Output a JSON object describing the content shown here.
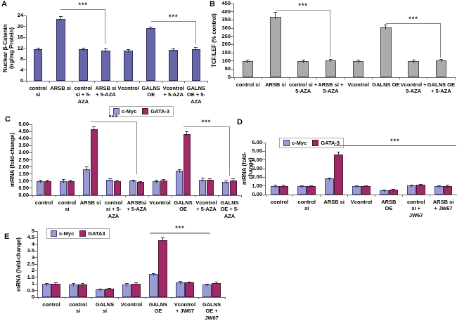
{
  "figure": {
    "background": "#ffffff",
    "axis_color": "#6b6b6b",
    "panel_letters": [
      "A",
      "B",
      "C",
      "D",
      "E"
    ]
  },
  "chart_data": [
    {
      "id": "A",
      "type": "bar",
      "panel_letter": "A",
      "ylabel": "Nuclear β-Catenin\n(ng/mg Protein)",
      "xlabel": "",
      "ylim": [
        0,
        24
      ],
      "grid": false,
      "legend_position": "none",
      "axis_color": "#6b6b6b",
      "yticks": [
        [
          0,
          "0"
        ],
        [
          4,
          "4"
        ],
        [
          8,
          "8"
        ],
        [
          12,
          "12"
        ],
        [
          16,
          "16"
        ],
        [
          20,
          "20"
        ],
        [
          24,
          "24"
        ]
      ],
      "categories": [
        "control\nsi",
        "ARSB si",
        "control\nsi + 5-\nAZA",
        "ARSB si\n+ 5-AZA",
        "Vcontrol",
        "GALNS\nOE",
        "Vcontrol\n+ 5-AZA",
        "GALNS\nOE + 5-\nAZA"
      ],
      "series": [
        {
          "name": "Nuclear beta-Catenin",
          "color": "#6767A8",
          "border": "#2F2F60",
          "values": [
            11.5,
            22.8,
            11.5,
            11.2,
            11.1,
            19.4,
            11.3,
            11.7
          ],
          "errors": [
            0.4,
            0.8,
            0.4,
            0.5,
            0.3,
            0.4,
            0.4,
            0.6
          ]
        }
      ],
      "annotations": [
        {
          "label": "***",
          "from": 1,
          "to": 3,
          "y": 26.2,
          "drop": 13.6,
          "color": "#858585"
        },
        {
          "label": "***",
          "from": 5,
          "to": 7,
          "y": 21.9,
          "drop": 13.3,
          "color": "#858585"
        }
      ]
    },
    {
      "id": "B",
      "type": "bar",
      "panel_letter": "B",
      "ylabel": "TCF/LEF (% control)",
      "xlabel": "",
      "ylim": [
        0,
        450
      ],
      "grid": false,
      "legend_position": "none",
      "axis_color": "#6b6b6b",
      "yticks": [
        [
          0,
          "0"
        ],
        [
          50,
          "50"
        ],
        [
          100,
          "100"
        ],
        [
          150,
          "150"
        ],
        [
          200,
          "200"
        ],
        [
          250,
          "250"
        ],
        [
          300,
          "300"
        ],
        [
          350,
          "350"
        ],
        [
          400,
          "400"
        ],
        [
          450,
          "450"
        ]
      ],
      "categories": [
        "control si",
        "ARSB si",
        "control si +\n5-AZA",
        "ARSB si +\n5-AZA",
        "Vcontrol",
        "GALNS OE",
        "Vcontrol +\n5-AZA",
        "GALNS OE\n+ 5-AZA"
      ],
      "series": [
        {
          "name": "TCF/LEF",
          "color": "#ABABAB",
          "border": "#4A4A4A",
          "values": [
            100,
            370,
            100,
            105,
            100,
            305,
            100,
            105
          ],
          "errors": [
            5,
            28,
            5,
            6,
            5,
            15,
            5,
            6
          ]
        }
      ],
      "annotations": [
        {
          "label": "***",
          "from": 1,
          "to": 3,
          "y": 412,
          "drop": 118,
          "color": "#858585"
        },
        {
          "label": "***",
          "from": 5,
          "to": 7,
          "y": 330,
          "drop": 120,
          "color": "#858585"
        }
      ]
    },
    {
      "id": "C",
      "type": "bar",
      "panel_letter": "C",
      "ylabel": "mRNA (fold-change)",
      "xlabel": "",
      "ylim": [
        0,
        5
      ],
      "grid": false,
      "legend_position": "top-center",
      "axis_color": "#6b6b6b",
      "yticks": [
        [
          0,
          "0.00"
        ],
        [
          0.5,
          "0.50"
        ],
        [
          1,
          "1.00"
        ],
        [
          1.5,
          "1.50"
        ],
        [
          2,
          "2.00"
        ],
        [
          2.5,
          "2.50"
        ],
        [
          3,
          "3.00"
        ],
        [
          3.5,
          "3.50"
        ],
        [
          4,
          "4.00"
        ],
        [
          4.5,
          "4.50"
        ],
        [
          5,
          "5.00"
        ]
      ],
      "categories": [
        "control",
        "control\nsi",
        "ARSB si",
        "control\nsi + 5-\nAZA",
        "ARSBsi\n+ 5-AZA",
        "Vcontrol",
        "GALNS\nOE",
        "Vcontrol\n+ 5-AZA",
        "GALNS\nOE + 5-\nAZA"
      ],
      "legend": [
        {
          "label": "c-Myc",
          "color": "#9B9BD4",
          "border": "#3F3F7A"
        },
        {
          "label": "GATA-3",
          "color": "#A02A66",
          "border": "#4F1232"
        }
      ],
      "series": [
        {
          "name": "c-Myc",
          "color": "#9B9BD4",
          "border": "#3F3F7A",
          "values": [
            1.0,
            1.0,
            1.85,
            1.1,
            1.02,
            1.0,
            1.75,
            1.1,
            0.95
          ],
          "errors": [
            0.05,
            0.1,
            0.15,
            0.05,
            0.05,
            0.06,
            0.06,
            0.1,
            0.05
          ]
        },
        {
          "name": "GATA-3",
          "color": "#A02A66",
          "border": "#4F1232",
          "values": [
            1.0,
            1.0,
            4.65,
            1.0,
            0.95,
            1.05,
            4.3,
            1.1,
            1.05
          ],
          "errors": [
            0.08,
            0.08,
            0.18,
            0.05,
            0.04,
            0.06,
            0.18,
            0.07,
            0.1
          ]
        }
      ],
      "annotations": [
        {
          "label": "***",
          "from": 2,
          "to": 4,
          "y": 5.2,
          "drop": 1.5,
          "color": "#858585"
        },
        {
          "label": "***",
          "from": 6,
          "to": 8,
          "y": 4.85,
          "drop": 1.4,
          "color": "#858585"
        }
      ]
    },
    {
      "id": "D",
      "type": "bar",
      "panel_letter": "D",
      "ylabel": "mRNA (fold-change)",
      "xlabel": "",
      "ylim": [
        0,
        6
      ],
      "grid": false,
      "legend_position": "top-left-inside",
      "axis_color": "#6b6b6b",
      "yticks": [
        [
          0,
          "0.00"
        ],
        [
          1,
          "1.00"
        ],
        [
          2,
          "2.00"
        ],
        [
          3,
          "3.00"
        ],
        [
          4,
          "4.00"
        ],
        [
          5,
          "5.00"
        ],
        [
          6,
          "6.00"
        ]
      ],
      "categories": [
        "control",
        "control\nsi",
        "ARSB si",
        "Vcontrol",
        "ARSB\nOE",
        "control\nsi +\nJW67",
        "ARSB si\n+ JW67"
      ],
      "legend": [
        {
          "label": "c-Myc",
          "color": "#9B9BD4",
          "border": "#3F3F7A"
        },
        {
          "label": "GATA-3",
          "color": "#A02A66",
          "border": "#4F1232"
        }
      ],
      "series": [
        {
          "name": "c-Myc",
          "color": "#9B9BD4",
          "border": "#3F3F7A",
          "values": [
            1.0,
            1.0,
            1.85,
            1.0,
            0.5,
            1.05,
            0.95
          ],
          "errors": [
            0.1,
            0.05,
            0.08,
            0.05,
            0.04,
            0.06,
            0.05
          ]
        },
        {
          "name": "GATA-3",
          "color": "#A02A66",
          "border": "#4F1232",
          "values": [
            1.0,
            0.95,
            4.65,
            1.0,
            0.55,
            1.1,
            1.0
          ],
          "errors": [
            0.12,
            0.05,
            0.25,
            0.05,
            0.05,
            0.05,
            0.08
          ]
        }
      ],
      "annotations": [
        {
          "label": "***",
          "from": 2,
          "to": 6,
          "y": 5.65,
          "drop": null,
          "x2_shift": 18,
          "color": "#4D4D4D"
        }
      ]
    },
    {
      "id": "E",
      "type": "bar",
      "panel_letter": "E",
      "ylabel": "mRNA (fold-change)",
      "xlabel": "",
      "ylim": [
        0,
        5
      ],
      "grid": false,
      "legend_position": "top-left",
      "axis_color": "#6b6b6b",
      "yticks": [
        [
          0,
          "0"
        ],
        [
          0.5,
          "0.5"
        ],
        [
          1,
          "1"
        ],
        [
          1.5,
          "1.5"
        ],
        [
          2,
          "2"
        ],
        [
          2.5,
          "2.5"
        ],
        [
          3,
          "3"
        ],
        [
          3.5,
          "3.5"
        ],
        [
          4,
          "4"
        ],
        [
          4.5,
          "4.5"
        ],
        [
          5,
          "5"
        ]
      ],
      "categories": [
        "control",
        "control\nsi",
        "GALNS\nsi",
        "Vcontrol",
        "GALNS\nOE",
        "Vcontrol\n+ JW67",
        "GALNS\nOE +\nJW67"
      ],
      "legend": [
        {
          "label": "c-Myc",
          "color": "#9B9BD4",
          "border": "#3F3F7A"
        },
        {
          "label": "GATA3",
          "color": "#A02A66",
          "border": "#4F1232"
        }
      ],
      "series": [
        {
          "name": "c-Myc",
          "color": "#9B9BD4",
          "border": "#3F3F7A",
          "values": [
            1.0,
            0.95,
            0.57,
            0.95,
            1.75,
            1.1,
            0.95
          ],
          "errors": [
            0.05,
            0.1,
            0.04,
            0.07,
            0.05,
            0.08,
            0.04
          ]
        },
        {
          "name": "GATA3",
          "color": "#A02A66",
          "border": "#4F1232",
          "values": [
            1.0,
            0.95,
            0.62,
            1.0,
            4.3,
            1.1,
            1.05
          ],
          "errors": [
            0.08,
            0.1,
            0.04,
            0.08,
            0.2,
            0.05,
            0.1
          ]
        }
      ],
      "annotations": [
        {
          "label": "***",
          "from": 4,
          "to": 6,
          "y": 4.9,
          "drop": null,
          "x1_shift": -12,
          "x2_shift": -2,
          "color": "#A6A6A6",
          "thick": 2
        }
      ]
    }
  ]
}
